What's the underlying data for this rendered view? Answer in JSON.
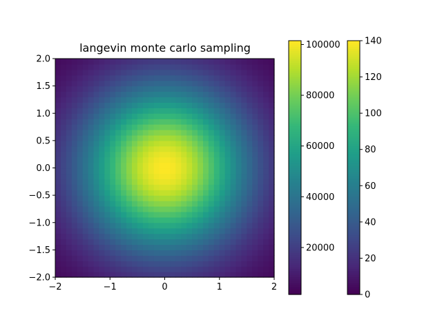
{
  "chart_data": {
    "type": "heatmap",
    "title": "langevin monte carlo sampling",
    "colormap": "viridis",
    "grid": false,
    "x_range": [
      -2,
      2
    ],
    "y_range": [
      -2,
      2
    ],
    "bins": [
      40,
      40
    ],
    "peak_center": [
      0,
      0
    ],
    "x_ticks": [
      {
        "v": -2,
        "label": "−2"
      },
      {
        "v": -1,
        "label": "−1"
      },
      {
        "v": 0,
        "label": "0"
      },
      {
        "v": 1,
        "label": "1"
      },
      {
        "v": 2,
        "label": "2"
      }
    ],
    "y_ticks": [
      {
        "v": 2.0,
        "label": "2.0"
      },
      {
        "v": 1.5,
        "label": "1.5"
      },
      {
        "v": 1.0,
        "label": "1.0"
      },
      {
        "v": 0.5,
        "label": "0.5"
      },
      {
        "v": 0.0,
        "label": "0.0"
      },
      {
        "v": -0.5,
        "label": "−0.5"
      },
      {
        "v": -1.0,
        "label": "−1.0"
      },
      {
        "v": -1.5,
        "label": "−1.5"
      },
      {
        "v": -2.0,
        "label": "−2.0"
      }
    ],
    "colorbars": [
      {
        "range": [
          1500,
          101500
        ],
        "ticks": [
          {
            "v": 20000,
            "label": "20000"
          },
          {
            "v": 40000,
            "label": "40000"
          },
          {
            "v": 60000,
            "label": "60000"
          },
          {
            "v": 80000,
            "label": "80000"
          },
          {
            "v": 100000,
            "label": "100000"
          }
        ]
      },
      {
        "range": [
          0,
          140
        ],
        "ticks": [
          {
            "v": 0,
            "label": "0"
          },
          {
            "v": 20,
            "label": "20"
          },
          {
            "v": 40,
            "label": "40"
          },
          {
            "v": 60,
            "label": "60"
          },
          {
            "v": 80,
            "label": "80"
          },
          {
            "v": 100,
            "label": "100"
          },
          {
            "v": 120,
            "label": "120"
          },
          {
            "v": 140,
            "label": "140"
          }
        ]
      }
    ]
  }
}
